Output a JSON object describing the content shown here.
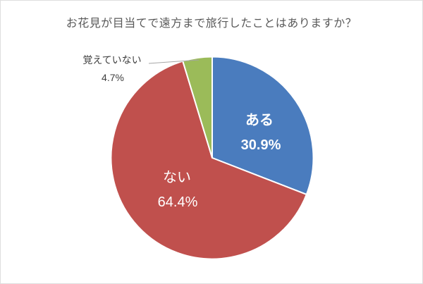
{
  "chart_data": {
    "type": "pie",
    "title": "お花見が目当てで遠方まで旅行したことはありますか？",
    "title_color": "#595959",
    "slices": [
      {
        "label": "ある",
        "value": 30.9,
        "pct_label": "30.9%",
        "color": "#4A7CBE",
        "label_position": "inside",
        "bold": true
      },
      {
        "label": "ない",
        "value": 64.4,
        "pct_label": "64.4%",
        "color": "#C0504D",
        "label_position": "inside",
        "bold": false
      },
      {
        "label": "覚えていない",
        "value": 4.7,
        "pct_label": "4.7%",
        "color": "#9BBB59",
        "label_position": "outside",
        "bold": false
      }
    ],
    "start_angle_deg": 0,
    "direction": "clockwise",
    "slice_border_color": "#FFFFFF",
    "inside_label_color": "#FFFFFF",
    "outside_label_color": "#3F3F3F",
    "leader_line_color": "#A6A6A6",
    "legend": "none"
  }
}
